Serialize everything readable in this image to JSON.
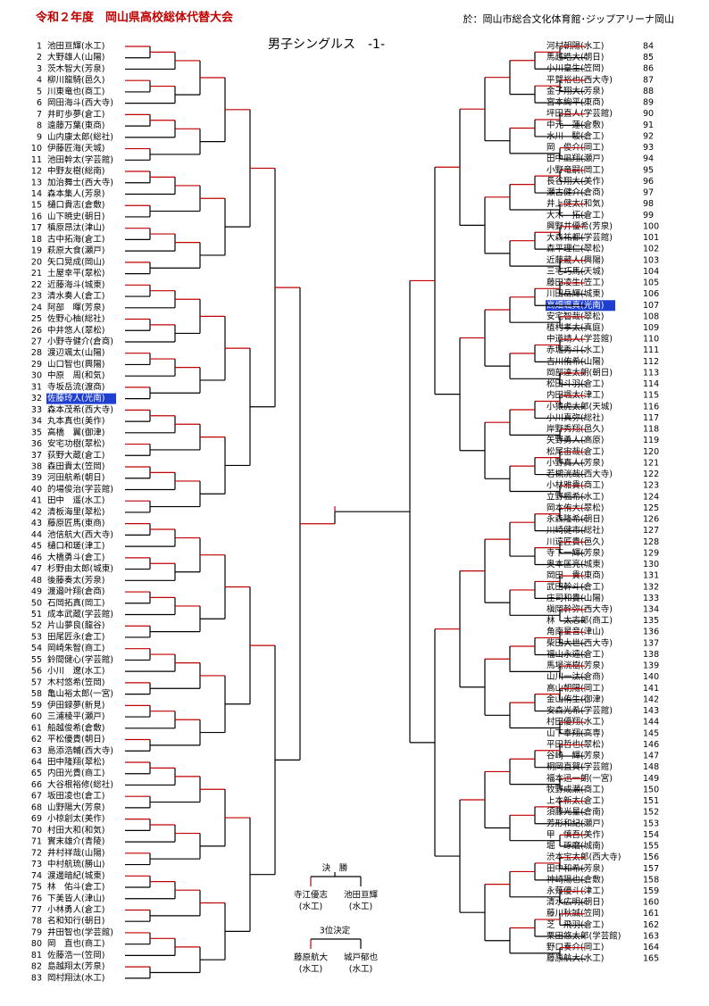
{
  "header": {
    "title": "令和２年度　岡山県高校総体代替大会",
    "venue": "於：岡山市総合文化体育館･ジップアリーナ岡山",
    "subtitle": "男子シングルス　-1-"
  },
  "left": [
    {
      "num": "1",
      "name": "池田亘輝(水工)"
    },
    {
      "num": "2",
      "name": "大野雄人(山陽)"
    },
    {
      "num": "3",
      "name": "茨木智大(芳泉)"
    },
    {
      "num": "4",
      "name": "柳川龍騎(邑久)"
    },
    {
      "num": "5",
      "name": "川東竜也(商工)"
    },
    {
      "num": "6",
      "name": "岡田海斗(西大寺)"
    },
    {
      "num": "7",
      "name": "井町歩夢(倉工)"
    },
    {
      "num": "8",
      "name": "遠藤万葉(東商)"
    },
    {
      "num": "9",
      "name": "山内康太郎(総社)"
    },
    {
      "num": "10",
      "name": "伊藤匠海(天城)"
    },
    {
      "num": "11",
      "name": "池田幹太(学芸館)"
    },
    {
      "num": "12",
      "name": "中野友樹(総南)"
    },
    {
      "num": "13",
      "name": "加治舞士(西大寺)"
    },
    {
      "num": "14",
      "name": "森本集人(芳泉)"
    },
    {
      "num": "15",
      "name": "樋口貴志(倉敷)"
    },
    {
      "num": "16",
      "name": "山下暁史(朝日)"
    },
    {
      "num": "17",
      "name": "槙原昂汰(津山)"
    },
    {
      "num": "18",
      "name": "古中拓海(倉工)"
    },
    {
      "num": "19",
      "name": "萩原大食(瀬戸)"
    },
    {
      "num": "20",
      "name": "矢口晃成(岡山)"
    },
    {
      "num": "21",
      "name": "土屋幸平(翠松)"
    },
    {
      "num": "22",
      "name": "近藤海斗(城東)"
    },
    {
      "num": "23",
      "name": "清水奏人(倉工)"
    },
    {
      "num": "24",
      "name": "阿部　暉(芳泉)"
    },
    {
      "num": "25",
      "name": "佐野心柚(総社)"
    },
    {
      "num": "26",
      "name": "中井悠人(翠松)"
    },
    {
      "num": "27",
      "name": "小野寺健介(倉商)"
    },
    {
      "num": "28",
      "name": "渡辺颯太(山陽)"
    },
    {
      "num": "29",
      "name": "山口智也(興陽)"
    },
    {
      "num": "30",
      "name": "中原　周(和気)"
    },
    {
      "num": "31",
      "name": "寺坂岳流(渡商)"
    },
    {
      "num": "32",
      "name": "佐藤玲人(光南)",
      "highlight": true
    },
    {
      "num": "33",
      "name": "森本茂希(西大寺)"
    },
    {
      "num": "34",
      "name": "丸本真也(美作)"
    },
    {
      "num": "35",
      "name": "高橋　翼(御津)"
    },
    {
      "num": "36",
      "name": "安宅功樹(翠松)"
    },
    {
      "num": "37",
      "name": "荻野大蔵(倉工)"
    },
    {
      "num": "38",
      "name": "森田貴太(笠岡)"
    },
    {
      "num": "39",
      "name": "河田航希(朝日)"
    },
    {
      "num": "40",
      "name": "的場俊治(学芸館)"
    },
    {
      "num": "41",
      "name": "田中　遥(水工)"
    },
    {
      "num": "42",
      "name": "清板海里(翠松)"
    },
    {
      "num": "43",
      "name": "藤原匠馬(東商)"
    },
    {
      "num": "44",
      "name": "池信航大(西大寺)"
    },
    {
      "num": "45",
      "name": "樋口和瑳(津工)"
    },
    {
      "num": "46",
      "name": "大橋勇斗(倉工)"
    },
    {
      "num": "47",
      "name": "杉野由太郎(城東)"
    },
    {
      "num": "48",
      "name": "後藤奏太(芳泉)"
    },
    {
      "num": "49",
      "name": "渡邉叶翔(倉商)"
    },
    {
      "num": "50",
      "name": "石岡拓真(岡工)"
    },
    {
      "num": "51",
      "name": "成本武蔵(学芸館)"
    },
    {
      "num": "52",
      "name": "片山夢良(龍谷)"
    },
    {
      "num": "53",
      "name": "田尾匠永(倉工)"
    },
    {
      "num": "54",
      "name": "岡崎朱智(商工)"
    },
    {
      "num": "55",
      "name": "鈴間健心(学芸館)"
    },
    {
      "num": "56",
      "name": "小川　遼(水工)"
    },
    {
      "num": "57",
      "name": "木村悠希(笠岡)"
    },
    {
      "num": "58",
      "name": "亀山裕太郎(一宮)"
    },
    {
      "num": "59",
      "name": "伊田録夢(新見)"
    },
    {
      "num": "60",
      "name": "三浦稜平(瀬戸)"
    },
    {
      "num": "61",
      "name": "船越俊希(倉敷)"
    },
    {
      "num": "62",
      "name": "平松優貴(朝日)"
    },
    {
      "num": "63",
      "name": "島添浩輔(西大寺)"
    },
    {
      "num": "64",
      "name": "田中隆翔(翠松)"
    },
    {
      "num": "65",
      "name": "内田光貴(商工)"
    },
    {
      "num": "66",
      "name": "大谷根裕修(総社)"
    },
    {
      "num": "67",
      "name": "坂田凌也(倉工)"
    },
    {
      "num": "68",
      "name": "山野陽大(芳泉)"
    },
    {
      "num": "69",
      "name": "小椋創太(美作)"
    },
    {
      "num": "70",
      "name": "村田大和(和気)"
    },
    {
      "num": "71",
      "name": "實末雄介(青陵)"
    },
    {
      "num": "72",
      "name": "井村祥哉(山陽)"
    },
    {
      "num": "73",
      "name": "中村航琉(勝山)"
    },
    {
      "num": "74",
      "name": "渡邊暗紀(城東)"
    },
    {
      "num": "75",
      "name": "林　佑斗(倉工)"
    },
    {
      "num": "76",
      "name": "下美皆人(津山)"
    },
    {
      "num": "77",
      "name": "小林勇人(倉工)"
    },
    {
      "num": "78",
      "name": "名和知行(朝日)"
    },
    {
      "num": "79",
      "name": "井田智也(学芸館)"
    },
    {
      "num": "80",
      "name": "岡　直也(商工)"
    },
    {
      "num": "81",
      "name": "佐藤浩一(笠岡)"
    },
    {
      "num": "82",
      "name": "島越翔太(芳泉)"
    },
    {
      "num": "83",
      "name": "岡村翔汰(水工)"
    }
  ],
  "right": [
    {
      "num": "84",
      "name": "河村朝陽(水工)"
    },
    {
      "num": "85",
      "name": "馬越晧大(朝日)"
    },
    {
      "num": "86",
      "name": "小川皇生(笠岡)"
    },
    {
      "num": "87",
      "name": "平賀裕也(西大寺)"
    },
    {
      "num": "88",
      "name": "金子翔大(芳泉)"
    },
    {
      "num": "89",
      "name": "宮本絢平(東商)"
    },
    {
      "num": "90",
      "name": "坪田直人(学芸館)"
    },
    {
      "num": "91",
      "name": "中元　蓮(倉敷)"
    },
    {
      "num": "92",
      "name": "水川　駿(倉工)"
    },
    {
      "num": "93",
      "name": "岡　俊介(岡工)"
    },
    {
      "num": "94",
      "name": "田中凪翔(瀬戸)"
    },
    {
      "num": "95",
      "name": "小野竜嗣(岡工)"
    },
    {
      "num": "96",
      "name": "長谷翔大(美作)"
    },
    {
      "num": "97",
      "name": "瀬古健介(倉商)"
    },
    {
      "num": "98",
      "name": "井上健太(和気)"
    },
    {
      "num": "99",
      "name": "大木　拓(倉工)"
    },
    {
      "num": "100",
      "name": "興野井優希(芳泉)"
    },
    {
      "num": "101",
      "name": "大森祐都(学芸館)"
    },
    {
      "num": "102",
      "name": "森平理仁(翠松)"
    },
    {
      "num": "103",
      "name": "近藤蔵人(興陽)"
    },
    {
      "num": "104",
      "name": "三宅巧馬(天城)"
    },
    {
      "num": "105",
      "name": "藤田凌生(笠工)"
    },
    {
      "num": "106",
      "name": "川田岳輝(城東)"
    },
    {
      "num": "107",
      "name": "高畑颯真(光南)",
      "highlight": true
    },
    {
      "num": "108",
      "name": "安宅智哉(翠松)"
    },
    {
      "num": "109",
      "name": "植村孝太(真庭)"
    },
    {
      "num": "110",
      "name": "中道靖人(学芸館)"
    },
    {
      "num": "111",
      "name": "赤堀秀斗(水工)"
    },
    {
      "num": "112",
      "name": "吉川侑希(山陽)"
    },
    {
      "num": "113",
      "name": "岡部達太朗(朝日)"
    },
    {
      "num": "114",
      "name": "松田斗羽(倉工)"
    },
    {
      "num": "115",
      "name": "内田颯太(津工)"
    },
    {
      "num": "116",
      "name": "小猿虎太郎(天城)"
    },
    {
      "num": "117",
      "name": "小川真弥(総社)"
    },
    {
      "num": "118",
      "name": "岸野秀翔(邑久)"
    },
    {
      "num": "119",
      "name": "矢野勇人(高原)"
    },
    {
      "num": "120",
      "name": "松尾宙哉(倉工)"
    },
    {
      "num": "121",
      "name": "小野真人(芳泉)"
    },
    {
      "num": "122",
      "name": "若槻洸哉(西大寺)"
    },
    {
      "num": "123",
      "name": "小林雅貴(商工)"
    },
    {
      "num": "124",
      "name": "立野楓希(水工)"
    },
    {
      "num": "125",
      "name": "岡本侑大(翠松)"
    },
    {
      "num": "126",
      "name": "永森隆希(朝日)"
    },
    {
      "num": "127",
      "name": "川崎健市(総社)"
    },
    {
      "num": "128",
      "name": "川遠匠貴(邑久)"
    },
    {
      "num": "129",
      "name": "寺下一輝(芳泉)"
    },
    {
      "num": "130",
      "name": "奥本匡亮(城東)"
    },
    {
      "num": "131",
      "name": "岡田　貴(東商)"
    },
    {
      "num": "132",
      "name": "武田幹斗(倉工)"
    },
    {
      "num": "133",
      "name": "庄司和貴(山陽)"
    },
    {
      "num": "134",
      "name": "槇岡幹弥(西大寺)"
    },
    {
      "num": "135",
      "name": "林　太志郎(商工)"
    },
    {
      "num": "136",
      "name": "角南星音(津山)"
    },
    {
      "num": "137",
      "name": "柴田大世(西大寺)"
    },
    {
      "num": "138",
      "name": "福山永遠(倉工)"
    },
    {
      "num": "139",
      "name": "馬場洸樹(芳泉)"
    },
    {
      "num": "140",
      "name": "山川一汰(倉商)"
    },
    {
      "num": "141",
      "name": "高山朝陽(岡工)"
    },
    {
      "num": "142",
      "name": "金山侑生(御津)"
    },
    {
      "num": "143",
      "name": "安森光希(学芸館)"
    },
    {
      "num": "144",
      "name": "村田優翔(水工)"
    },
    {
      "num": "145",
      "name": "山下奉翔(高専)"
    },
    {
      "num": "146",
      "name": "平田哲也(翠松)"
    },
    {
      "num": "147",
      "name": "谷崎　輝(芳泉)"
    },
    {
      "num": "148",
      "name": "桐岡直賀(学芸館)"
    },
    {
      "num": "149",
      "name": "福本迅一朗(一宮)"
    },
    {
      "num": "150",
      "name": "牧野成瀬(商工)"
    },
    {
      "num": "151",
      "name": "上本新太(倉工)"
    },
    {
      "num": "152",
      "name": "須藤光星(倉南)"
    },
    {
      "num": "153",
      "name": "芳形和紀(瀬戸)"
    },
    {
      "num": "154",
      "name": "甲　慎吾(美作)"
    },
    {
      "num": "155",
      "name": "堀　琢磨(城南)"
    },
    {
      "num": "156",
      "name": "渋本宝太郎(西大寺)"
    },
    {
      "num": "157",
      "name": "田中和希(芳泉)"
    },
    {
      "num": "158",
      "name": "神崎陽也(倉敷)"
    },
    {
      "num": "159",
      "name": "永薙優斗(津工)"
    },
    {
      "num": "160",
      "name": "清水広明(朝日)"
    },
    {
      "num": "161",
      "name": "藤川秋誠(笠岡)"
    },
    {
      "num": "162",
      "name": "芝　飛羽(倉工)"
    },
    {
      "num": "163",
      "name": "栗田悠太郎(学芸館)"
    },
    {
      "num": "164",
      "name": "野口奏介(岡工)"
    },
    {
      "num": "165",
      "name": "藤原航大(水工)"
    }
  ],
  "final": {
    "label": "決　勝",
    "players": [
      {
        "name": "寺江優志",
        "school": "(水工)"
      },
      {
        "name": "池田亘輝",
        "school": "(水工)"
      }
    ]
  },
  "third": {
    "label": "3位決定",
    "players": [
      {
        "name": "藤原航大",
        "school": "(水工)"
      },
      {
        "name": "城戸郁也",
        "school": "(水工)"
      }
    ]
  }
}
